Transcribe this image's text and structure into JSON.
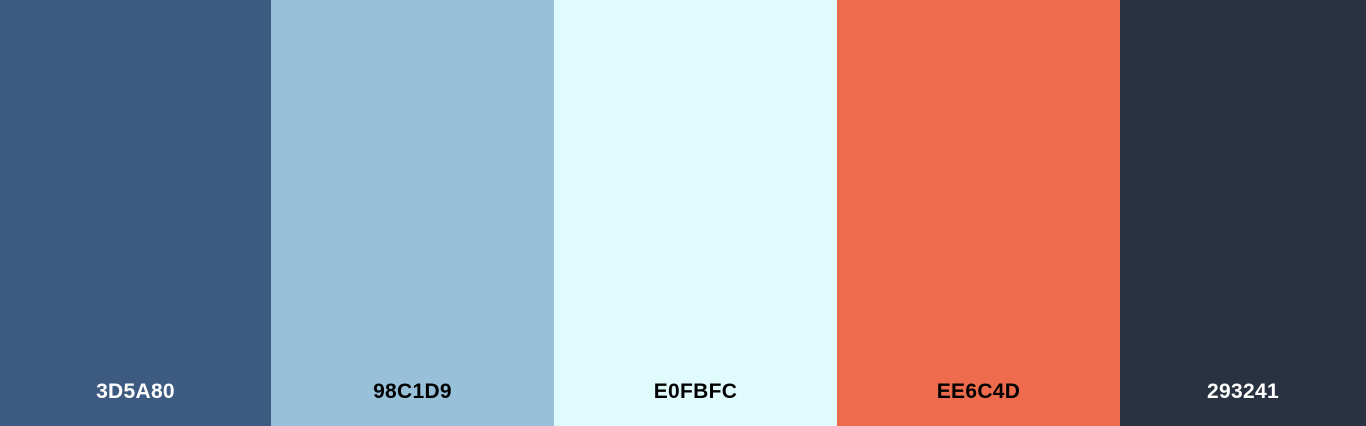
{
  "palette": {
    "colors": [
      {
        "hex": "3D5A80",
        "background": "#3D5A80",
        "text_color": "#FFFFFF"
      },
      {
        "hex": "98C1D9",
        "background": "#98C1D9",
        "text_color": "#000000"
      },
      {
        "hex": "E0FBFC",
        "background": "#E0FBFC",
        "text_color": "#000000"
      },
      {
        "hex": "EE6C4D",
        "background": "#EE6C4D",
        "text_color": "#000000"
      },
      {
        "hex": "293241",
        "background": "#293241",
        "text_color": "#FFFFFF"
      }
    ]
  }
}
